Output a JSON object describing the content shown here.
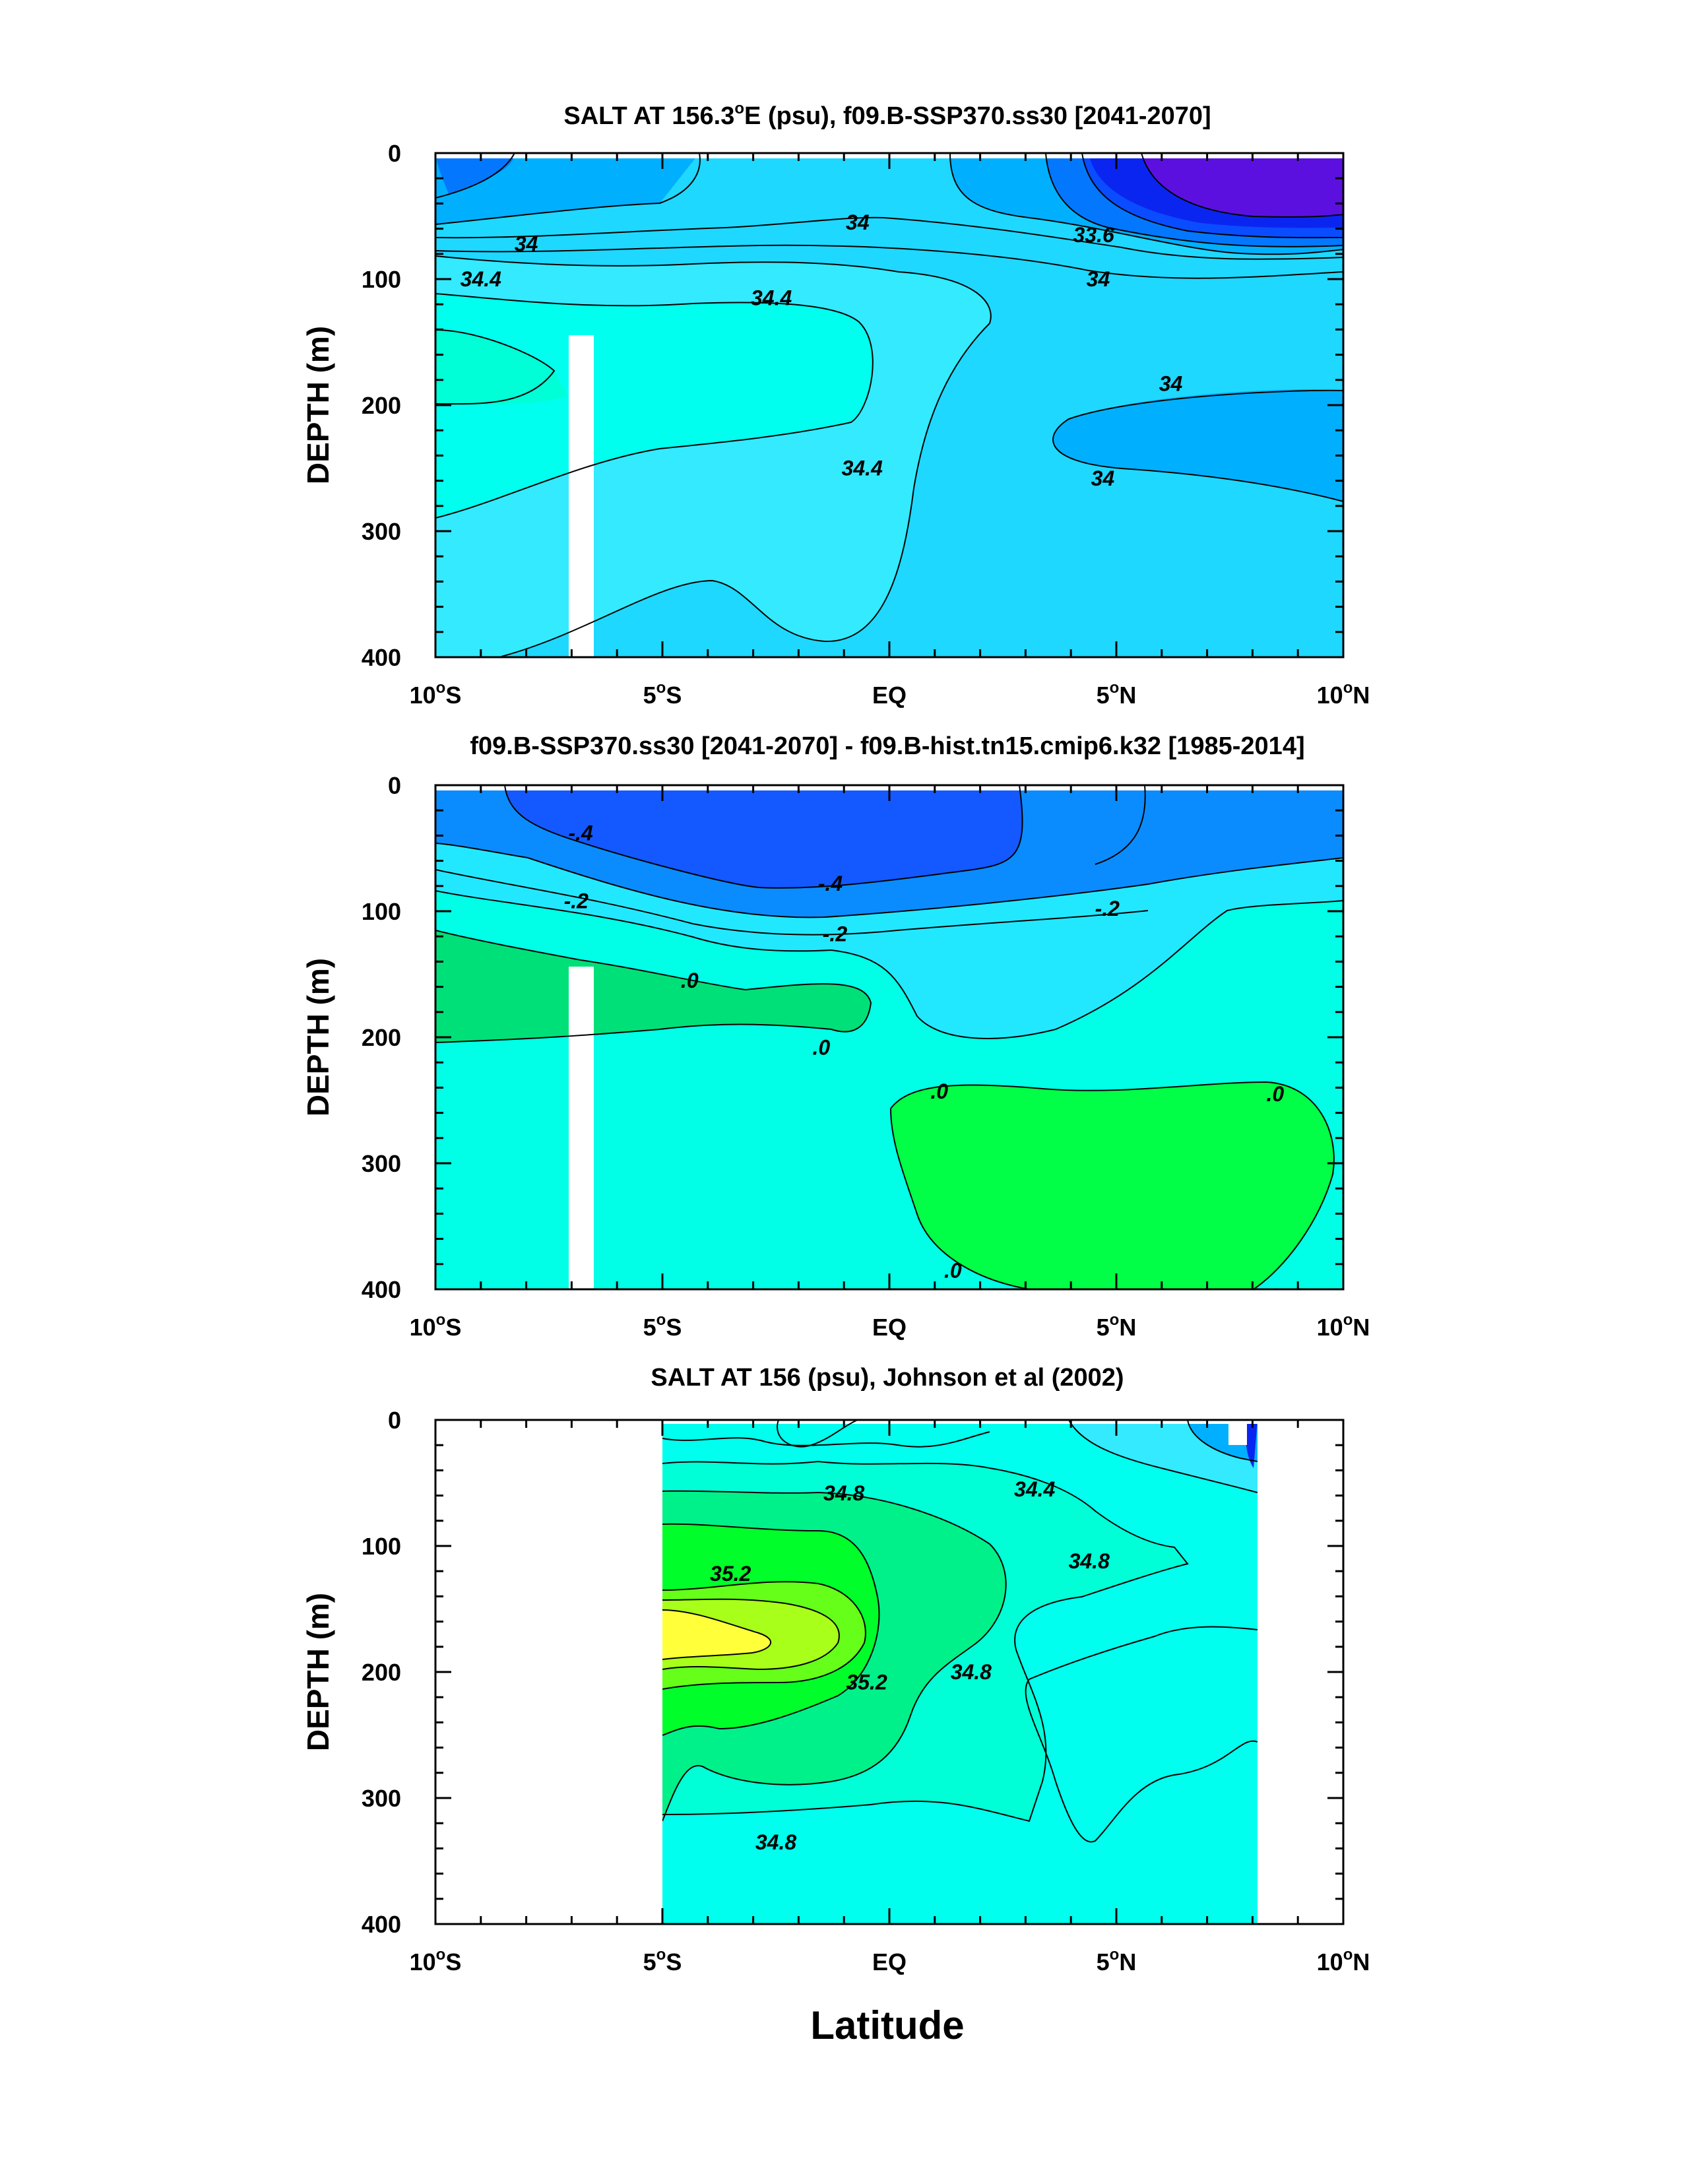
{
  "figure": {
    "xlabel": "Latitude",
    "colors": {
      "s_330": "#5c10e0",
      "s_334": "#0b25f0",
      "s_336": "#0a4cff",
      "s_338": "#0378ff",
      "s_340": "#00b0ff",
      "s_342": "#1ed8ff",
      "s_344": "#33eaff",
      "s_346": "#00ffee",
      "s_348": "#00ffd7",
      "s_350": "#00f08a",
      "s_352": "#00ff2a",
      "s_354": "#66ff1a",
      "s_356": "#a8ff1a",
      "s_358": "#ffff3a",
      "d_neg6": "#1458ff",
      "d_neg4": "#0a8cff",
      "d_neg2": "#22e8ff",
      "d_0": "#00ffe6",
      "d_pos": "#00e078",
      "d_pos2": "#00ff46"
    }
  },
  "chart_data": [
    {
      "type": "contour",
      "title": "SALT AT 156.3°E (psu), f09.B-SSP370.ss30 [2041-2070]",
      "title_main": "SALT AT 156.3",
      "title_sup": "o",
      "title_rest": "E (psu), f09.B-SSP370.ss30 [2041-2070]",
      "ylabel": "DEPTH (m)",
      "xlim": [
        -10,
        10
      ],
      "ylim": [
        0,
        400
      ],
      "y_reversed": true,
      "x_ticks": [
        -10,
        -5,
        0,
        5,
        10
      ],
      "x_tick_labels": [
        {
          "main": "10",
          "sup": "o",
          "suffix": "S"
        },
        {
          "main": "5",
          "sup": "o",
          "suffix": "S"
        },
        {
          "main": "EQ",
          "sup": "",
          "suffix": ""
        },
        {
          "main": "5",
          "sup": "o",
          "suffix": "N"
        },
        {
          "main": "10",
          "sup": "o",
          "suffix": "N"
        }
      ],
      "y_ticks": [
        0,
        100,
        200,
        300,
        400
      ],
      "y_tick_labels": [
        "0",
        "100",
        "200",
        "300",
        "400"
      ],
      "contour_labels": [
        {
          "text": "34",
          "lat": -8.0,
          "depth": 72
        },
        {
          "text": "34",
          "lat": -0.7,
          "depth": 55
        },
        {
          "text": "33.6",
          "lat": 4.5,
          "depth": 65
        },
        {
          "text": "34",
          "lat": 4.6,
          "depth": 100
        },
        {
          "text": "34.4",
          "lat": -9.0,
          "depth": 100
        },
        {
          "text": "34.4",
          "lat": -2.6,
          "depth": 115
        },
        {
          "text": "34",
          "lat": 6.2,
          "depth": 183
        },
        {
          "text": "34.4",
          "lat": -0.6,
          "depth": 250
        },
        {
          "text": "34",
          "lat": 4.7,
          "depth": 258
        }
      ]
    },
    {
      "type": "contour",
      "title": "f09.B-SSP370.ss30 [2041-2070] - f09.B-hist.tn15.cmip6.k32 [1985-2014]",
      "ylabel": "DEPTH (m)",
      "xlim": [
        -10,
        10
      ],
      "ylim": [
        0,
        400
      ],
      "y_reversed": true,
      "x_ticks": [
        -10,
        -5,
        0,
        5,
        10
      ],
      "x_tick_labels": [
        {
          "main": "10",
          "sup": "o",
          "suffix": "S"
        },
        {
          "main": "5",
          "sup": "o",
          "suffix": "S"
        },
        {
          "main": "EQ",
          "sup": "",
          "suffix": ""
        },
        {
          "main": "5",
          "sup": "o",
          "suffix": "N"
        },
        {
          "main": "10",
          "sup": "o",
          "suffix": "N"
        }
      ],
      "y_ticks": [
        0,
        100,
        200,
        300,
        400
      ],
      "y_tick_labels": [
        "0",
        "100",
        "200",
        "300",
        "400"
      ],
      "contour_labels": [
        {
          "text": "-.4",
          "lat": -6.8,
          "depth": 38
        },
        {
          "text": "-.4",
          "lat": -1.3,
          "depth": 78
        },
        {
          "text": "-.2",
          "lat": -6.9,
          "depth": 92
        },
        {
          "text": "-.2",
          "lat": -1.2,
          "depth": 118
        },
        {
          "text": "-.2",
          "lat": 4.8,
          "depth": 98
        },
        {
          "text": ".0",
          "lat": -4.4,
          "depth": 155
        },
        {
          "text": ".0",
          "lat": -1.5,
          "depth": 208
        },
        {
          "text": ".0",
          "lat": 1.1,
          "depth": 243
        },
        {
          "text": ".0",
          "lat": 8.5,
          "depth": 245
        },
        {
          "text": ".0",
          "lat": 1.4,
          "depth": 385
        }
      ]
    },
    {
      "type": "contour",
      "title": "SALT AT 156 (psu), Johnson et al (2002)",
      "ylabel": "DEPTH (m)",
      "xlim": [
        -10,
        10
      ],
      "ylim": [
        0,
        400
      ],
      "y_reversed": true,
      "x_ticks": [
        -10,
        -5,
        0,
        5,
        10
      ],
      "x_tick_labels": [
        {
          "main": "10",
          "sup": "o",
          "suffix": "S"
        },
        {
          "main": "5",
          "sup": "o",
          "suffix": "S"
        },
        {
          "main": "EQ",
          "sup": "",
          "suffix": ""
        },
        {
          "main": "5",
          "sup": "o",
          "suffix": "N"
        },
        {
          "main": "10",
          "sup": "o",
          "suffix": "N"
        }
      ],
      "y_ticks": [
        0,
        100,
        200,
        300,
        400
      ],
      "y_tick_labels": [
        "0",
        "100",
        "200",
        "300",
        "400"
      ],
      "data_lat_range": [
        -5,
        8
      ],
      "contour_labels": [
        {
          "text": "34.8",
          "lat": -1.0,
          "depth": 58
        },
        {
          "text": "34.4",
          "lat": 3.2,
          "depth": 55
        },
        {
          "text": "35.2",
          "lat": -3.5,
          "depth": 122
        },
        {
          "text": "34.8",
          "lat": 4.4,
          "depth": 112
        },
        {
          "text": "35.2",
          "lat": -0.5,
          "depth": 208
        },
        {
          "text": "34.8",
          "lat": 1.8,
          "depth": 200
        },
        {
          "text": "34.8",
          "lat": -2.5,
          "depth": 335
        }
      ]
    }
  ]
}
